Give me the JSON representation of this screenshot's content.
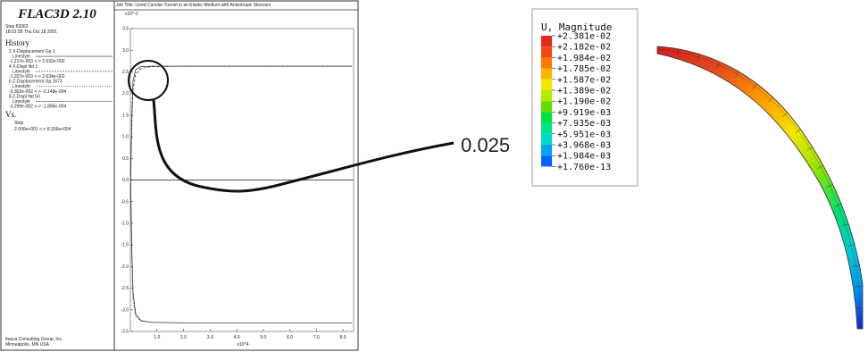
{
  "flac": {
    "title": "FLAC3D 2.10",
    "step": "Step 83362",
    "date": "18:01:58 Thu Oct 18 2001",
    "history_heading": "History",
    "history_items": [
      "2 X-Displacement Gp 1",
      "Linestyle",
      "-1.217e-003 <-> 2.632e-002",
      "4 X-Displ Nd 1",
      "Linestyle",
      "-1.207e-003 <-> 2.634e-002",
      "6 Z-Displacement Gp 1673",
      "Linestyle",
      "-3.302e-002 <-> -2.148e-004",
      "8 Z-Displ Nd 50",
      "Linestyle",
      "-3.299e-002 <-> -1.896e-004"
    ],
    "vs_heading": "Vs.",
    "vs_items": [
      "Step",
      "2.000e+001 <-> 8.336e+004"
    ],
    "footer": [
      "Itasca Consulting Group, Inc.",
      "Minneapolis, MN USA"
    ]
  },
  "chart_data": [
    {
      "type": "line",
      "title": "Job Title: Lined Circular Tunnel in an Elastic Medium with Anisotropic Stresses",
      "ylabel": "x10^-2",
      "xlabel": "x10^4",
      "xlim": [
        0,
        8.4
      ],
      "ylim": [
        -3.5,
        3.5
      ],
      "yticks": [
        3.5,
        3.0,
        2.5,
        2.0,
        1.5,
        1.0,
        0.5,
        0.0,
        -0.5,
        -1.0,
        -1.5,
        -2.0,
        -2.5,
        -3.0,
        -3.5
      ],
      "ytick_labels": [
        "3.5",
        "3.0",
        "2.5",
        "2.0",
        "1.5",
        "1.0",
        "0.5",
        "0.0",
        "-0.5",
        "-1.0",
        "-1.5",
        "-2.0",
        "-2.5",
        "-3.0",
        "-3.5"
      ],
      "xticks": [
        1,
        2,
        3,
        4,
        5,
        6,
        7,
        8
      ],
      "xtick_labels": [
        "1.0",
        "2.0",
        "3.0",
        "4.0",
        "5.0",
        "6.0",
        "7.0",
        "8.0"
      ],
      "series": [
        {
          "style": "solid",
          "x": [
            0.01,
            0.05,
            0.1,
            0.2,
            0.4,
            0.8,
            2,
            8.34
          ],
          "y": [
            0,
            1.4,
            2.3,
            2.55,
            2.62,
            2.63,
            2.63,
            2.63
          ]
        },
        {
          "style": "dashed",
          "x": [
            0.01,
            0.05,
            0.1,
            0.2,
            0.4,
            0.8,
            2,
            8.34
          ],
          "y": [
            0,
            1.2,
            2.1,
            2.45,
            2.58,
            2.62,
            2.63,
            2.63
          ]
        },
        {
          "style": "solid",
          "x": [
            0.01,
            0.05,
            0.1,
            0.2,
            0.4,
            0.8,
            2,
            8.34
          ],
          "y": [
            0,
            -1.5,
            -2.6,
            -3.1,
            -3.25,
            -3.29,
            -3.3,
            -3.3
          ]
        },
        {
          "style": "dotted",
          "x": [
            0.01,
            0.05,
            0.1,
            0.2,
            0.4,
            0.8,
            2,
            8.34
          ],
          "y": [
            0,
            -1.8,
            -2.8,
            -3.15,
            -3.26,
            -3.29,
            -3.3,
            -3.3
          ]
        }
      ]
    },
    {
      "type": "heatmap",
      "title": "U, Magnitude",
      "legend_values": [
        "+2.381e-02",
        "+2.182e-02",
        "+1.984e-02",
        "+1.785e-02",
        "+1.587e-02",
        "+1.389e-02",
        "+1.190e-02",
        "+9.919e-03",
        "+7.935e-03",
        "+5.951e-03",
        "+3.968e-03",
        "+1.984e-03",
        "+1.760e-13"
      ],
      "legend_colors": [
        "#e8241c",
        "#f04a10",
        "#ff7a00",
        "#ffb400",
        "#f2e600",
        "#b5ec00",
        "#5de200",
        "#00e43a",
        "#00e48c",
        "#00d8d0",
        "#00a6f0",
        "#0064ff",
        "#0a20f0"
      ]
    }
  ],
  "annotation": {
    "callout_value": "0.025"
  }
}
